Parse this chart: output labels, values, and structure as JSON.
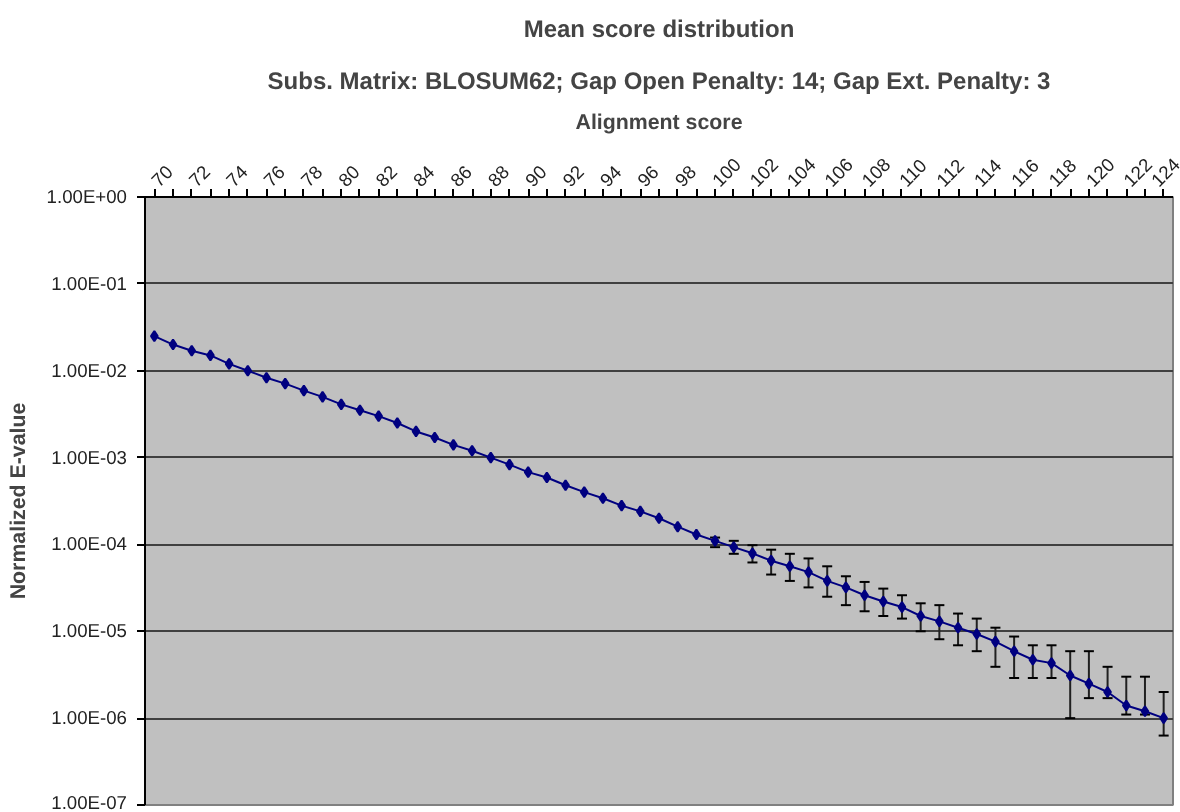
{
  "chart_data": {
    "type": "line",
    "title": "Mean score distribution",
    "subtitle": "Subs. Matrix: BLOSUM62; Gap Open Penalty: 14; Gap Ext. Penalty: 3",
    "xlabel": "Alignment score",
    "ylabel": "Normalized E-value",
    "x": [
      70,
      71,
      72,
      73,
      74,
      75,
      76,
      77,
      78,
      79,
      80,
      81,
      82,
      83,
      84,
      85,
      86,
      87,
      88,
      89,
      90,
      91,
      92,
      93,
      94,
      95,
      96,
      97,
      98,
      99,
      100,
      101,
      102,
      103,
      104,
      105,
      106,
      107,
      108,
      109,
      110,
      111,
      112,
      113,
      114,
      115,
      116,
      117,
      118,
      119,
      120,
      121,
      122,
      123,
      124
    ],
    "series": [
      {
        "color": "#000080",
        "values": [
          0.025,
          0.02,
          0.017,
          0.015,
          0.012,
          0.01,
          0.0083,
          0.0071,
          0.0059,
          0.005,
          0.0041,
          0.0035,
          0.003,
          0.0025,
          0.002,
          0.0017,
          0.0014,
          0.0012,
          0.001,
          0.00083,
          0.00068,
          0.00059,
          0.00048,
          0.0004,
          0.00034,
          0.00028,
          0.00024,
          0.0002,
          0.00016,
          0.00013,
          0.00011,
          9.3e-05,
          7.9e-05,
          6.5e-05,
          5.6e-05,
          4.8e-05,
          3.8e-05,
          3.2e-05,
          2.6e-05,
          2.2e-05,
          1.9e-05,
          1.5e-05,
          1.3e-05,
          1.1e-05,
          9.3e-06,
          7.6e-06,
          5.9e-06,
          4.7e-06,
          4.3e-06,
          3.1e-06,
          2.5e-06,
          2e-06,
          1.4e-06,
          1.2e-06,
          1e-06
        ],
        "errors": [
          null,
          null,
          null,
          null,
          null,
          null,
          null,
          null,
          null,
          null,
          null,
          null,
          null,
          null,
          null,
          null,
          null,
          null,
          null,
          null,
          null,
          null,
          null,
          null,
          null,
          null,
          null,
          null,
          null,
          null,
          [
            9.3e-05,
            0.00012
          ],
          [
            7.8e-05,
            0.00011
          ],
          [
            6.2e-05,
            9.8e-05
          ],
          [
            4.5e-05,
            8.7e-05
          ],
          [
            3.8e-05,
            7.8e-05
          ],
          [
            3.2e-05,
            6.9e-05
          ],
          [
            2.5e-05,
            5.6e-05
          ],
          [
            2e-05,
            4.3e-05
          ],
          [
            1.7e-05,
            3.7e-05
          ],
          [
            1.5e-05,
            3.1e-05
          ],
          [
            1.4e-05,
            2.6e-05
          ],
          [
            1e-05,
            2.1e-05
          ],
          [
            8.1e-06,
            2e-05
          ],
          [
            6.9e-06,
            1.6e-05
          ],
          [
            5.9e-06,
            1.4e-05
          ],
          [
            3.9e-06,
            1.1e-05
          ],
          [
            2.9e-06,
            8.7e-06
          ],
          [
            2.9e-06,
            6.9e-06
          ],
          [
            2.9e-06,
            6.9e-06
          ],
          [
            1e-06,
            5.9e-06
          ],
          [
            1.7e-06,
            5.9e-06
          ],
          [
            1.7e-06,
            3.9e-06
          ],
          [
            1.1e-06,
            3e-06
          ],
          [
            1.1e-06,
            3e-06
          ],
          [
            6.3e-07,
            2e-06
          ]
        ]
      }
    ],
    "xlim": [
      69.5,
      124.5
    ],
    "xticks": [
      70,
      {
        "value": 71,
        "label": null
      },
      72,
      {
        "value": 73,
        "label": null
      },
      74,
      {
        "value": 75,
        "label": null
      },
      76,
      {
        "value": 77,
        "label": null
      },
      78,
      {
        "value": 79,
        "label": null
      },
      80,
      {
        "value": 81,
        "label": null
      },
      82,
      {
        "value": 83,
        "label": null
      },
      84,
      {
        "value": 85,
        "label": null
      },
      86,
      {
        "value": 87,
        "label": null
      },
      88,
      {
        "value": 89,
        "label": null
      },
      90,
      {
        "value": 91,
        "label": null
      },
      92,
      {
        "value": 93,
        "label": null
      },
      94,
      {
        "value": 95,
        "label": null
      },
      96,
      {
        "value": 97,
        "label": null
      },
      98,
      {
        "value": 99,
        "label": null
      },
      100,
      {
        "value": 101,
        "label": null
      },
      102,
      {
        "value": 103,
        "label": null
      },
      104,
      {
        "value": 105,
        "label": null
      },
      106,
      {
        "value": 107,
        "label": null
      },
      108,
      {
        "value": 109,
        "label": null
      },
      110,
      {
        "value": 111,
        "label": null
      },
      112,
      {
        "value": 113,
        "label": null
      },
      114,
      {
        "value": 115,
        "label": null
      },
      116,
      {
        "value": 117,
        "label": null
      },
      118,
      {
        "value": 119,
        "label": null
      },
      120,
      {
        "value": 121,
        "label": null
      },
      122,
      {
        "value": 123,
        "label": null
      },
      124
    ],
    "ylim": [
      1e-07,
      1
    ],
    "yticks": [
      {
        "value": 1,
        "label": "1.00E+00"
      },
      {
        "value": 0.1,
        "label": "1.00E-01"
      },
      {
        "value": 0.01,
        "label": "1.00E-02"
      },
      {
        "value": 0.001,
        "label": "1.00E-03"
      },
      {
        "value": 0.0001,
        "label": "1.00E-04"
      },
      {
        "value": 1e-05,
        "label": "1.00E-05"
      },
      {
        "value": 1e-06,
        "label": "1.00E-06"
      },
      {
        "value": 1e-07,
        "label": "1.00E-07"
      }
    ],
    "log": "y",
    "grid": "y",
    "marker": "diamond",
    "line_style": "solid"
  }
}
